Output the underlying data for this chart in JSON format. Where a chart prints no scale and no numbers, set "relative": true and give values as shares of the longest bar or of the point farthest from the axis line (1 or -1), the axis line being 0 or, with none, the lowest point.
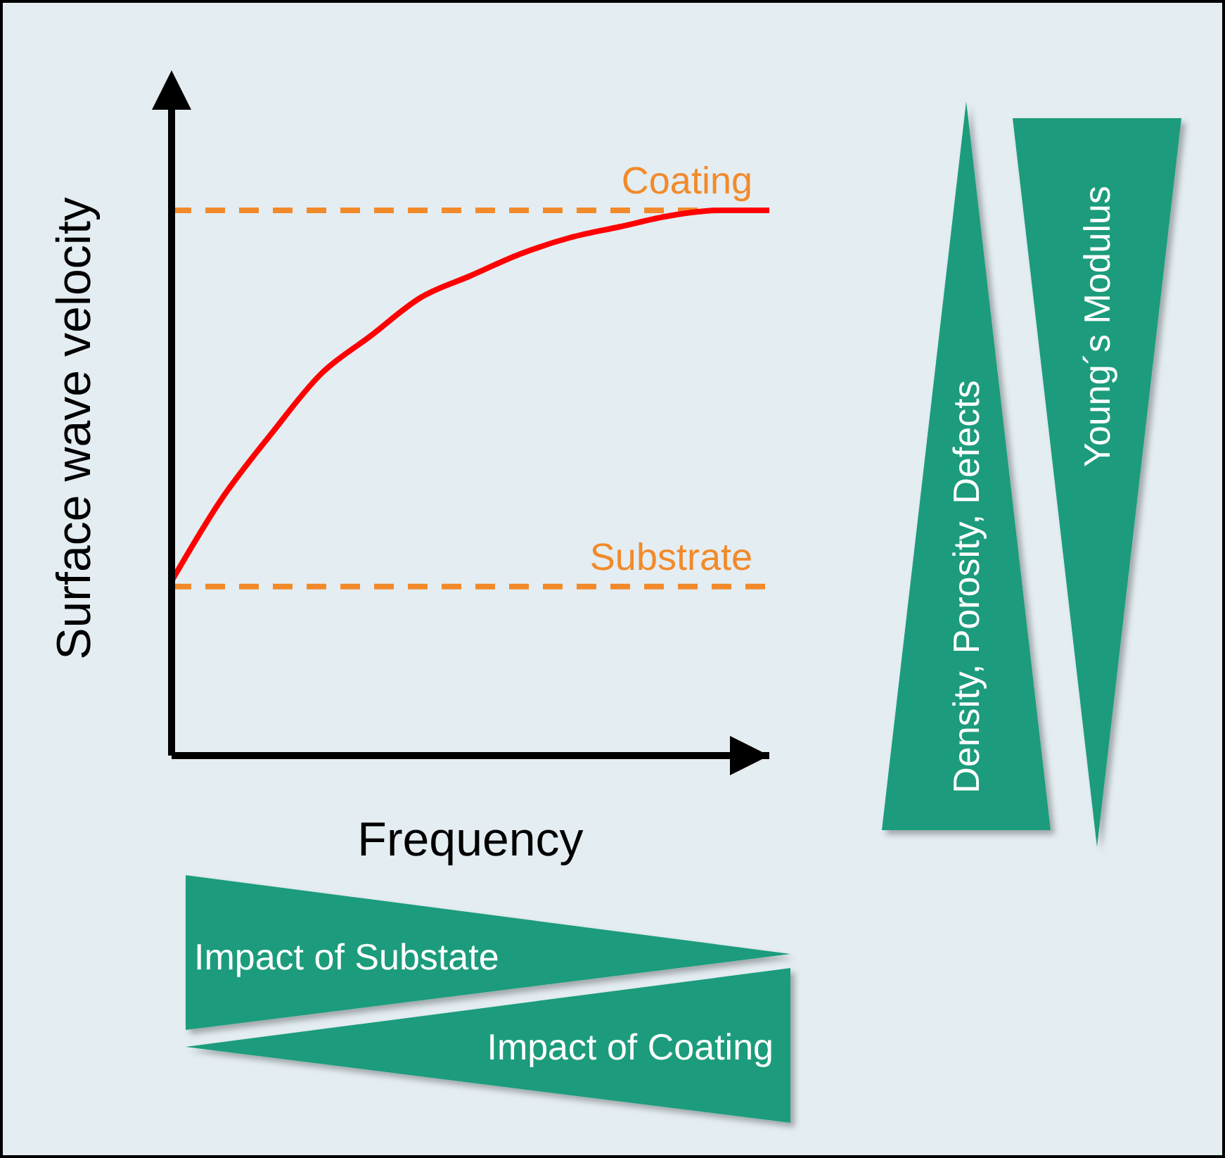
{
  "chart_data": {
    "type": "line",
    "relative": true,
    "xlabel": "Frequency",
    "ylabel": "Surface wave velocity",
    "categories": [
      null,
      null,
      null,
      null,
      null,
      null,
      null,
      null,
      null,
      null,
      null,
      null,
      null
    ],
    "series": [
      {
        "color": "#ff0000",
        "values": [
          0.32,
          0.47,
          0.59,
          0.7,
          0.77,
          0.84,
          0.88,
          0.92,
          0.95,
          0.97,
          0.99,
          1.0,
          1.0
        ]
      }
    ],
    "ref_lines": [
      {
        "axis": "y",
        "value": 1.0,
        "label": "Coating",
        "color": "#f28a2a",
        "line_style": "dashed"
      },
      {
        "axis": "y",
        "value": 0.31,
        "label": "Substrate",
        "color": "#f28a2a",
        "line_style": "dashed"
      }
    ],
    "annotations": [
      "Density, Porosity, Defects",
      "Young´s Modulus",
      "Impact of Substate",
      "Impact of Coating"
    ],
    "marker": "none",
    "line_style": "solid"
  }
}
